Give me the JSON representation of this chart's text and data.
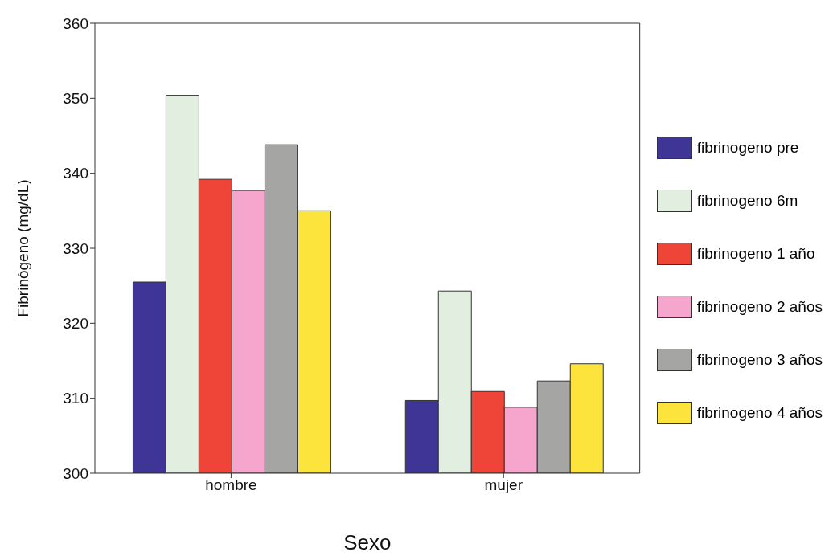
{
  "chart_data": {
    "type": "bar",
    "xlabel": "Sexo",
    "ylabel": "Fibrinógeno (mg/dL)",
    "categories": [
      "hombre",
      "mujer"
    ],
    "series": [
      {
        "name": "fibrinogeno pre",
        "color": "#3f3596",
        "values": [
          325.5,
          309.7
        ]
      },
      {
        "name": "fibrinogeno 6m",
        "color": "#e2efe0",
        "values": [
          350.4,
          324.3
        ]
      },
      {
        "name": "fibrinogeno 1 año",
        "color": "#ef4438",
        "values": [
          339.2,
          310.9
        ]
      },
      {
        "name": "fibrinogeno 2 años",
        "color": "#f6a5cc",
        "values": [
          337.7,
          308.8
        ]
      },
      {
        "name": "fibrinogeno 3 años",
        "color": "#a5a5a3",
        "values": [
          343.8,
          312.3
        ]
      },
      {
        "name": "fibrinogeno 4 años",
        "color": "#fde43c",
        "values": [
          335.0,
          314.6
        ]
      }
    ],
    "ylim": [
      300,
      360
    ],
    "yticks": [
      300,
      310,
      320,
      330,
      340,
      350,
      360
    ],
    "legend": "right"
  }
}
